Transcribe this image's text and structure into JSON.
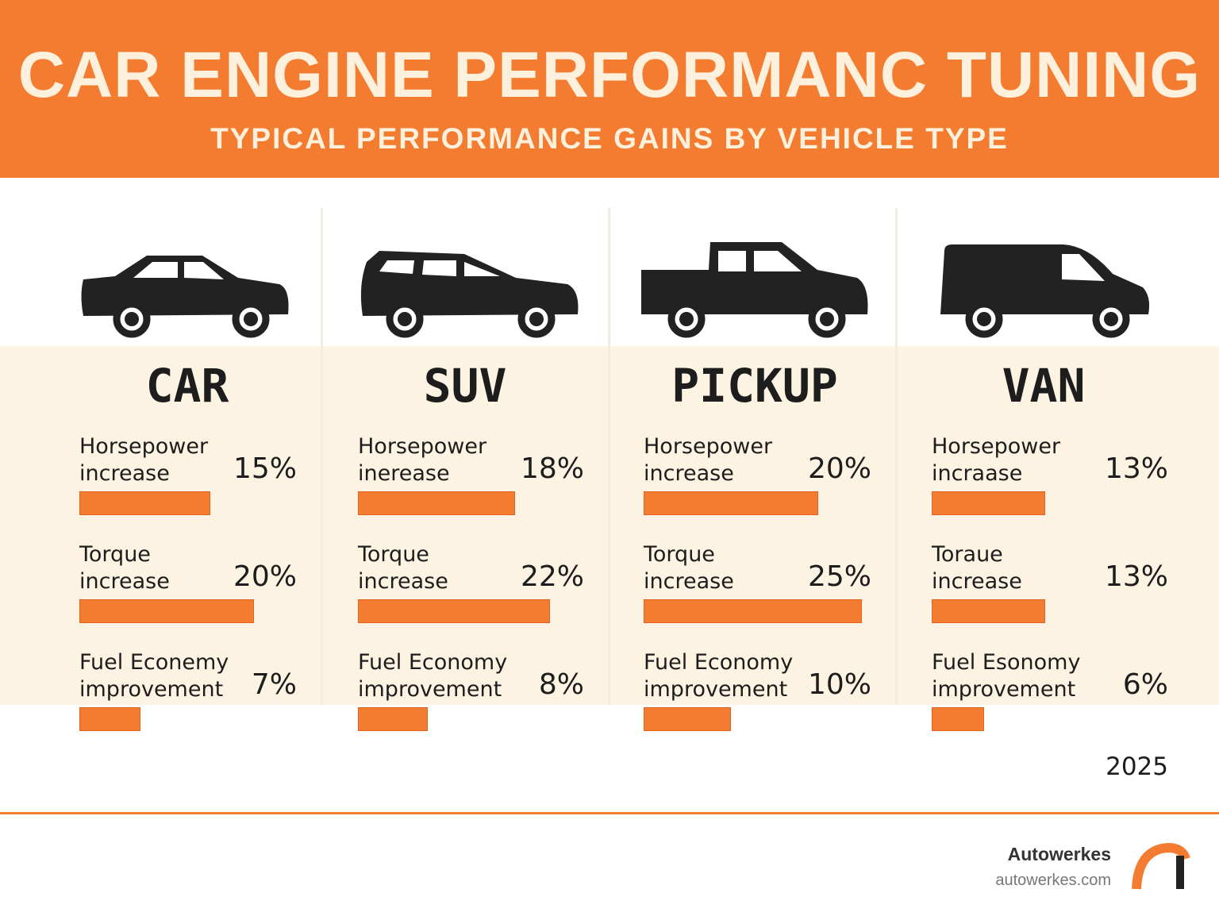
{
  "header": {
    "title": "CAR ENGINE PERFORMANC TUNING",
    "subtitle": "TYPICAL PERFORMANCE GAINS BY VEHICLE TYPE"
  },
  "panels": [
    {
      "name": "CAR",
      "metrics": [
        {
          "label": "Horsepower increase",
          "value": 15,
          "value_label": "15%"
        },
        {
          "label": "Torque increase",
          "value": 20,
          "value_label": "20%"
        },
        {
          "label": "Fuel Econemy improvement",
          "value": 7,
          "value_label": "7%"
        }
      ]
    },
    {
      "name": "SUV",
      "metrics": [
        {
          "label": "Horsepower inerease",
          "value": 18,
          "value_label": "18%"
        },
        {
          "label": "Torque increase",
          "value": 22,
          "value_label": "22%"
        },
        {
          "label": "Fuel Economy improvement",
          "value": 8,
          "value_label": "8%"
        }
      ]
    },
    {
      "name": "PICKUP",
      "metrics": [
        {
          "label": "Horsepower increase",
          "value": 20,
          "value_label": "20%"
        },
        {
          "label": "Torque increase",
          "value": 25,
          "value_label": "25%"
        },
        {
          "label": "Fuel Economy improvement",
          "value": 10,
          "value_label": "10%"
        }
      ]
    },
    {
      "name": "VAN",
      "metrics": [
        {
          "label": "Horsepower incraase",
          "value": 13,
          "value_label": "13%"
        },
        {
          "label": "Toraue increase",
          "value": 13,
          "value_label": "13%"
        },
        {
          "label": "Fuel Esonomy improvement",
          "value": 6,
          "value_label": "6%"
        }
      ]
    }
  ],
  "year": "2025",
  "footer": {
    "brand": "Autowerkes",
    "url": "autowerkes.com"
  }
}
